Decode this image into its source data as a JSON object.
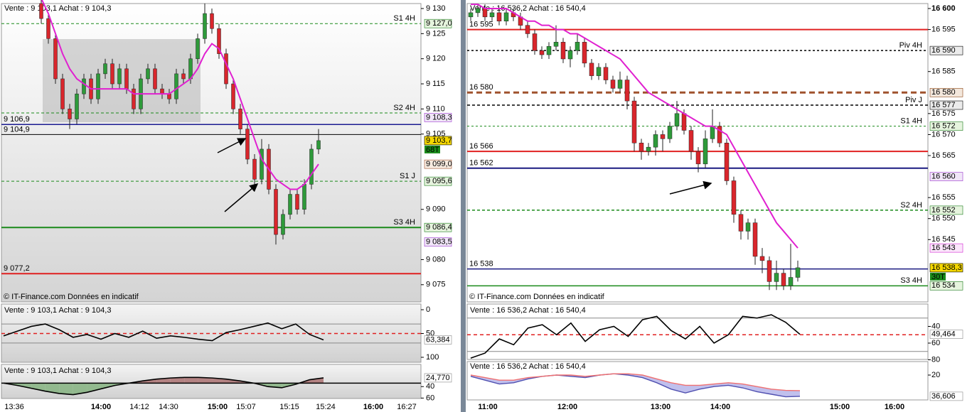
{
  "left": {
    "header": "Vente : 9 103,1 Achat : 9 104,3",
    "watermark": "© IT-Finance.com  Données en indicatif",
    "ylim": [
      9072,
      9130
    ],
    "yticks": [
      {
        "value": 9130,
        "label": "9 130"
      },
      {
        "value": 9125,
        "label": "9 125"
      },
      {
        "value": 9120,
        "label": "9 120"
      },
      {
        "value": 9115,
        "label": "9 115"
      },
      {
        "value": 9110,
        "label": "9 110"
      },
      {
        "value": 9105,
        "label": "9 105"
      },
      {
        "value": 9090,
        "label": "9 090"
      },
      {
        "value": 9080,
        "label": "9 080"
      },
      {
        "value": 9075,
        "label": "9 075"
      }
    ],
    "levels": [
      {
        "value": 9127.0,
        "color": "#1a8a1a",
        "dash": "4,3",
        "width": 1,
        "name": "S1 4H"
      },
      {
        "value": 9109.2,
        "color": "#1a8a1a",
        "dash": "4,3",
        "width": 1,
        "name": "S2 4H"
      },
      {
        "value": 9106.9,
        "color": "#1a1a90",
        "width": 1.5,
        "price_label": "9 106,9"
      },
      {
        "value": 9104.9,
        "color": "#000000",
        "width": 1,
        "price_label": "9 104,9"
      },
      {
        "value": 9095.6,
        "color": "#1a8a1a",
        "dash": "4,3",
        "width": 1,
        "name": "S1 J"
      },
      {
        "value": 9086.4,
        "color": "#1a8a1a",
        "width": 2,
        "name": "S3 4H"
      },
      {
        "value": 9077.2,
        "color": "#e02020",
        "width": 2,
        "price_label": "9 077,2"
      }
    ],
    "tags": [
      {
        "value": 9127.0,
        "label": "9 127,0",
        "color": "#1a7a1a",
        "bg": "#e6f4de"
      },
      {
        "value": 9108.3,
        "label": "9 108,3",
        "color": "#9933cc",
        "bg": "#f1e6f8"
      },
      {
        "value": 9103.7,
        "label": "9 103,7",
        "color": "#000000",
        "bg": "#f5d800"
      },
      {
        "value": 9099.0,
        "label": "9 099,0",
        "color": "#a0522d",
        "bg": "#f7ebe0"
      },
      {
        "value": 9095.6,
        "label": "9 095,6",
        "color": "#1a7a1a",
        "bg": "#e6f4de"
      },
      {
        "value": 9086.4,
        "label": "9 086,4",
        "color": "#1a7a1a",
        "bg": "#e6f4de"
      },
      {
        "value": 9083.5,
        "label": "9 083,5",
        "color": "#9933cc",
        "bg": "#f1e6f8"
      }
    ],
    "count_tag": "68T",
    "candles": {
      "open": [
        9131,
        9128,
        9124,
        9116,
        9110,
        9108,
        9113,
        9116,
        9112,
        9117,
        9119,
        9115,
        9118,
        9114,
        9110,
        9116,
        9118,
        9114,
        9113,
        9112,
        9117,
        9116,
        9120,
        9124,
        9129,
        9126,
        9121,
        9115,
        9110,
        9106,
        9100,
        9096,
        9102,
        9094,
        9085,
        9089,
        9093,
        9090,
        9095,
        9102
      ],
      "high": [
        9132,
        9129,
        9125,
        9117,
        9111,
        9114,
        9117,
        9117,
        9118,
        9120,
        9120,
        9119,
        9119,
        9115,
        9117,
        9119,
        9119,
        9115,
        9114,
        9118,
        9118,
        9121,
        9125,
        9131,
        9130,
        9127,
        9122,
        9116,
        9111,
        9107,
        9101,
        9104,
        9103,
        9095,
        9090,
        9094,
        9094,
        9096,
        9103,
        9106
      ],
      "low": [
        9127,
        9123,
        9115,
        9109,
        9106,
        9107,
        9112,
        9111,
        9111,
        9116,
        9114,
        9114,
        9113,
        9109,
        9109,
        9115,
        9113,
        9112,
        9111,
        9111,
        9115,
        9115,
        9119,
        9123,
        9125,
        9120,
        9114,
        9109,
        9105,
        9099,
        9094,
        9095,
        9093,
        9083,
        9084,
        9088,
        9089,
        9089,
        9094,
        9101
      ],
      "close": [
        9128,
        9124,
        9116,
        9110,
        9108,
        9113,
        9116,
        9112,
        9117,
        9119,
        9115,
        9118,
        9114,
        9110,
        9116,
        9118,
        9114,
        9113,
        9112,
        9117,
        9116,
        9120,
        9124,
        9129,
        9126,
        9121,
        9115,
        9110,
        9106,
        9100,
        9096,
        9102,
        9094,
        9085,
        9089,
        9093,
        9090,
        9095,
        9102,
        9103.7
      ]
    },
    "ma": [
      9132,
      9129,
      9125,
      9121,
      9118,
      9116,
      9115,
      9114,
      9114,
      9114,
      9114,
      9114,
      9114,
      9113,
      9113,
      9113,
      9113,
      9113,
      9113,
      9114,
      9115,
      9116,
      9118,
      9121,
      9123,
      9122,
      9119,
      9116,
      9112,
      9108,
      9104,
      9100,
      9098,
      9096,
      9095,
      9094,
      9094,
      9095,
      9097,
      9099
    ],
    "ma_color": "#e020d0",
    "xticks": [
      "13:36",
      "14:00",
      "14:12",
      "14:30",
      "15:00",
      "15:07",
      "15:15",
      "15:24",
      "16:00",
      "16:27"
    ],
    "rsi": {
      "header": "Vente : 9 103,1 Achat : 9 104,3",
      "ylim": [
        0,
        100
      ],
      "yticks": [
        100,
        50,
        0
      ],
      "bands": [
        70,
        30
      ],
      "mid": 50,
      "values": [
        55,
        45,
        35,
        30,
        42,
        58,
        52,
        62,
        50,
        58,
        45,
        60,
        55,
        58,
        62,
        65,
        48,
        42,
        35,
        28,
        40,
        30,
        52,
        63.384
      ],
      "last": {
        "value": 63.384,
        "label": "63,384"
      }
    },
    "momentum": {
      "header": "Vente : 9 103,1 Achat : 9 104,3",
      "ylim": [
        10,
        62
      ],
      "yticks": [
        60,
        40
      ],
      "baseline": 34,
      "values": [
        34,
        38,
        43,
        48,
        52,
        54,
        50,
        44,
        38,
        34,
        30,
        27,
        25,
        24,
        24,
        25,
        27,
        30,
        34,
        40,
        42,
        36,
        28,
        24.77
      ],
      "last": {
        "value": 24.77,
        "label": "24,770"
      }
    }
  },
  "right": {
    "header": "Vente : 16 536,2 Achat : 16 540,4",
    "watermark": "© IT-Finance.com  Données en indicatif",
    "ylim": [
      16530,
      16600
    ],
    "yticks": [
      {
        "value": 16600,
        "label": "16 600"
      },
      {
        "value": 16595,
        "label": "16 595"
      },
      {
        "value": 16585,
        "label": "16 585"
      },
      {
        "value": 16575,
        "label": "16 575"
      },
      {
        "value": 16570,
        "label": "16 570"
      },
      {
        "value": 16565,
        "label": "16 565"
      },
      {
        "value": 16555,
        "label": "16 555"
      },
      {
        "value": 16550,
        "label": "16 550"
      },
      {
        "value": 16545,
        "label": "16 545"
      }
    ],
    "levels": [
      {
        "value": 16595,
        "color": "#e02020",
        "width": 2,
        "price_label": "16 595"
      },
      {
        "value": 16590,
        "color": "#000000",
        "dash": "3,3",
        "width": 1.5,
        "name": "Piv 4H"
      },
      {
        "value": 16580,
        "color": "#a0522d",
        "dash": "8,5",
        "width": 3,
        "price_label": "16 580"
      },
      {
        "value": 16577,
        "color": "#000000",
        "dash": "4,3",
        "width": 1.5,
        "name": "Piv J"
      },
      {
        "value": 16572,
        "color": "#1a8a1a",
        "dash": "3,3",
        "width": 1,
        "name": "S1 4H"
      },
      {
        "value": 16566,
        "color": "#e02020",
        "width": 2,
        "price_label": "16 566"
      },
      {
        "value": 16562,
        "color": "#1a1a80",
        "width": 2,
        "price_label": "16 562"
      },
      {
        "value": 16552,
        "color": "#1a8a1a",
        "dash": "4,3",
        "width": 1.5,
        "name": "S2 4H"
      },
      {
        "value": 16538,
        "color": "#1a1a80",
        "width": 1.5,
        "price_label": "16 538"
      },
      {
        "value": 16534,
        "color": "#1a8a1a",
        "width": 1.5,
        "name": "S3 4H"
      }
    ],
    "tags": [
      {
        "value": 16590,
        "label": "16 590",
        "color": "#000000",
        "bg": "#ececec"
      },
      {
        "value": 16580,
        "label": "16 580",
        "color": "#8b4513",
        "bg": "#f3e7dc"
      },
      {
        "value": 16577,
        "label": "16 577",
        "color": "#000000",
        "bg": "#ececec"
      },
      {
        "value": 16572,
        "label": "16 572",
        "color": "#1a7a1a",
        "bg": "#e6f4de"
      },
      {
        "value": 16560,
        "label": "16 560",
        "color": "#9933cc",
        "bg": "#f1e6f8"
      },
      {
        "value": 16552,
        "label": "16 552",
        "color": "#1a7a1a",
        "bg": "#e6f4de"
      },
      {
        "value": 16543,
        "label": "16 543",
        "color": "#d020d0",
        "bg": "#fbe6fb"
      },
      {
        "value": 16538.3,
        "label": "16 538,3",
        "color": "#000000",
        "bg": "#f5d800"
      },
      {
        "value": 16534,
        "label": "16 534",
        "color": "#1a7a1a",
        "bg": "#e6f4de"
      }
    ],
    "count_tag": "30T",
    "candles": {
      "open": [
        16598,
        16599,
        16600,
        16598,
        16599,
        16597,
        16599,
        16598,
        16596,
        16594,
        16590,
        16589,
        16591,
        16592,
        16588,
        16590,
        16592,
        16587,
        16584,
        16586,
        16583,
        16581,
        16583,
        16578,
        16568,
        16566,
        16567,
        16570,
        16569,
        16572,
        16575,
        16571,
        16566,
        16563,
        16569,
        16572,
        16568,
        16559,
        16551,
        16547,
        16549,
        16541,
        16540,
        16535,
        16537,
        16534,
        16536
      ],
      "high": [
        16600,
        16601,
        16601,
        16600,
        16600,
        16600,
        16600,
        16599,
        16597,
        16595,
        16591,
        16592,
        16596,
        16593,
        16591,
        16594,
        16593,
        16588,
        16587,
        16587,
        16584,
        16585,
        16584,
        16579,
        16569,
        16568,
        16571,
        16571,
        16573,
        16578,
        16576,
        16572,
        16567,
        16571,
        16576,
        16573,
        16569,
        16560,
        16552,
        16550,
        16550,
        16543,
        16541,
        16540,
        16538,
        16544,
        16540
      ],
      "low": [
        16597,
        16598,
        16597,
        16597,
        16596,
        16596,
        16597,
        16595,
        16593,
        16589,
        16588,
        16588,
        16590,
        16587,
        16586,
        16589,
        16586,
        16583,
        16583,
        16582,
        16580,
        16580,
        16576,
        16566,
        16564,
        16565,
        16565,
        16566,
        16568,
        16571,
        16570,
        16564,
        16561,
        16562,
        16568,
        16567,
        16558,
        16549,
        16545,
        16545,
        16539,
        16537,
        16533,
        16533,
        16533,
        16533,
        16535
      ],
      "close": [
        16599,
        16600,
        16598,
        16599,
        16597,
        16599,
        16598,
        16596,
        16594,
        16590,
        16589,
        16591,
        16592,
        16588,
        16590,
        16592,
        16587,
        16584,
        16586,
        16583,
        16581,
        16583,
        16578,
        16568,
        16566,
        16567,
        16570,
        16569,
        16572,
        16575,
        16571,
        16566,
        16563,
        16569,
        16572,
        16568,
        16559,
        16551,
        16547,
        16549,
        16541,
        16540,
        16535,
        16537,
        16534,
        16536,
        16538.3
      ]
    },
    "ma": [
      16601,
      16601,
      16600,
      16600,
      16600,
      16600,
      16599,
      16598,
      16597,
      16597,
      16596,
      16596,
      16595,
      16595,
      16594,
      16594,
      16593,
      16592,
      16591,
      16590,
      16589,
      16588,
      16586,
      16584,
      16582,
      16580,
      16579,
      16578,
      16577,
      16576,
      16575,
      16574,
      16573,
      16572,
      16572,
      16571,
      16570,
      16567,
      16564,
      16561,
      16558,
      16555,
      16552,
      16549,
      16547,
      16545,
      16543
    ],
    "ma_color": "#e020d0",
    "xticks": [
      "11:00",
      "12:00",
      "13:00",
      "14:00",
      "15:00",
      "16:00"
    ],
    "rsi": {
      "header": "Vente : 16 536,2 Achat : 16 540,4",
      "ylim": [
        20,
        80
      ],
      "yticks": [
        80,
        60,
        40
      ],
      "bands": [
        70,
        30
      ],
      "mid": 50,
      "values": [
        78,
        72,
        55,
        62,
        42,
        38,
        50,
        36,
        58,
        44,
        40,
        52,
        32,
        28,
        45,
        55,
        40,
        60,
        50,
        28,
        30,
        26,
        35,
        49.464
      ],
      "last": {
        "value": 49.464,
        "label": "49,464"
      }
    },
    "dual": {
      "header": "Vente : 16 536,2 Achat : 16 540,4",
      "ylim": [
        10,
        40
      ],
      "yticks": [
        20
      ],
      "series": [
        {
          "color": "#5050b0",
          "values": [
            21,
            24,
            27,
            26,
            23,
            21,
            20,
            21,
            22,
            20,
            19,
            20,
            22,
            26,
            31,
            34,
            31,
            29,
            28,
            30,
            33,
            35,
            37,
            36.606
          ]
        },
        {
          "color": "#f07070",
          "values": [
            20,
            22,
            24,
            24,
            22,
            21,
            20,
            20,
            21,
            20,
            19,
            19,
            20,
            23,
            26,
            28,
            28,
            27,
            26,
            27,
            29,
            31,
            32,
            32.2
          ]
        }
      ],
      "last": {
        "value": 36.606,
        "label": "36,606"
      }
    }
  }
}
